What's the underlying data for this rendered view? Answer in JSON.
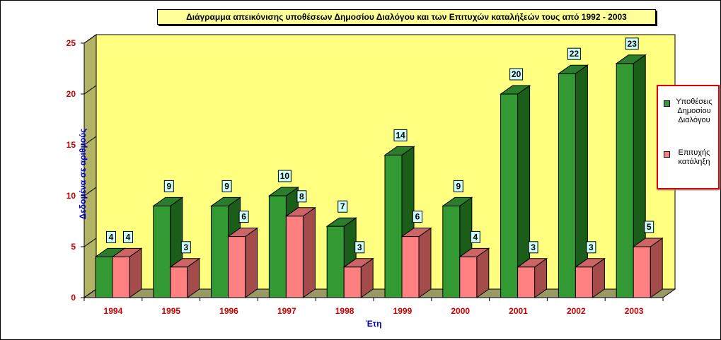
{
  "title": "Διάγραμμα απεικόνισης υποθέσεων Δημοσίου Διαλόγου και των Επιτυχών καταλήξεών τους από 1992 - 2003",
  "colors": {
    "series1_front": "#339933",
    "series1_side": "#1a5e1a",
    "series1_top": "#2a7d2a",
    "series2_front": "#ff8080",
    "series2_side": "#a44c4c",
    "series2_top": "#cc6666",
    "wall": "#ffff80",
    "wall_side": "#b3b366",
    "floor": "#999966",
    "label_box": "#ccffff",
    "tick_text": "#cc0000",
    "axis_title": "#0000cc",
    "legend_border": "#e00000"
  },
  "legend": {
    "series1_label": "Υποθέσεις Δημοσίου Διαλόγου",
    "series2_label": "Επιτυχής κατάληξη"
  },
  "chart_data": {
    "type": "bar",
    "title": "Διάγραμμα απεικόνισης υποθέσεων Δημοσίου Διαλόγου και των Επιτυχών καταλήξεών τους από 1992 - 2003",
    "categories": [
      "1994",
      "1995",
      "1996",
      "1997",
      "1998",
      "1999",
      "2000",
      "2001",
      "2002",
      "2003"
    ],
    "series": [
      {
        "name": "Υποθέσεις Δημοσίου Διαλόγου",
        "values": [
          4,
          9,
          9,
          10,
          7,
          14,
          9,
          20,
          22,
          23
        ]
      },
      {
        "name": "Επιτυχής κατάληξη",
        "values": [
          4,
          3,
          6,
          8,
          3,
          6,
          4,
          3,
          3,
          5
        ]
      }
    ],
    "xlabel": "Έτη",
    "ylabel": "Δεδομένα σε αριθμούς",
    "ylim": [
      0,
      25
    ],
    "yticks": [
      "0",
      "5",
      "10",
      "15",
      "20",
      "25"
    ],
    "grid": false,
    "legend_position": "right",
    "style": "3d-clustered-column"
  }
}
